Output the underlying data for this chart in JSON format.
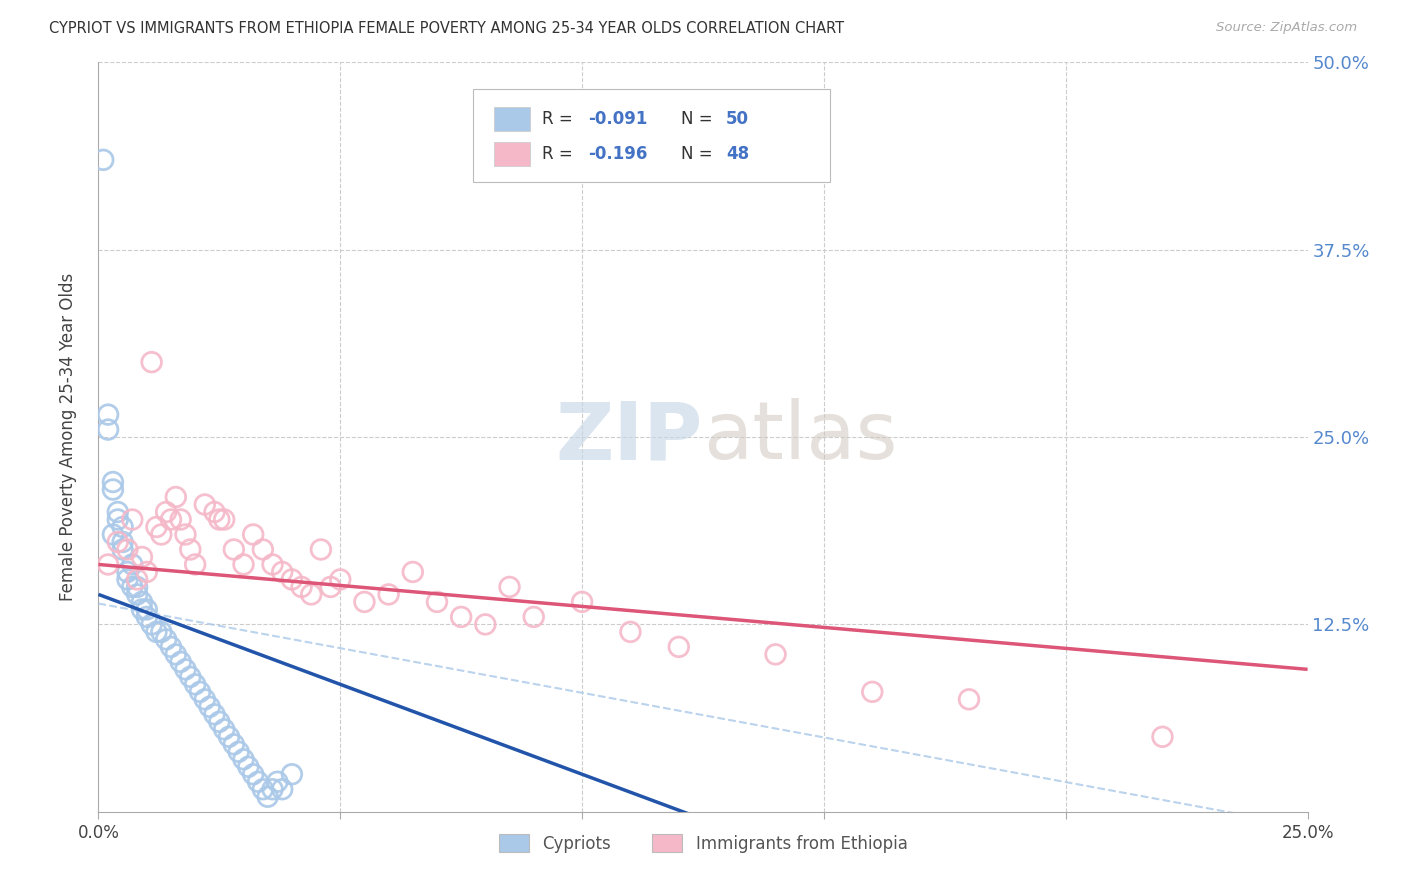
{
  "title": "CYPRIOT VS IMMIGRANTS FROM ETHIOPIA FEMALE POVERTY AMONG 25-34 YEAR OLDS CORRELATION CHART",
  "source": "Source: ZipAtlas.com",
  "ylabel": "Female Poverty Among 25-34 Year Olds",
  "xlim": [
    0.0,
    0.25
  ],
  "ylim": [
    0.0,
    0.5
  ],
  "background_color": "#ffffff",
  "cypriot_marker_color": "#aac8e8",
  "ethiopia_marker_color": "#f5b8c8",
  "cypriot_line_color": "#2255aa",
  "ethiopia_line_color": "#dd5577",
  "dashed_line_color": "#aac8e8",
  "right_axis_color": "#5588cc",
  "legend_r1": "-0.091",
  "legend_n1": "50",
  "legend_r2": "-0.196",
  "legend_n2": "48",
  "legend_label1": "Cypriots",
  "legend_label2": "Immigrants from Ethiopia",
  "watermark_zip": "ZIP",
  "watermark_atlas": "atlas",
  "cypriot_R": -0.091,
  "ethiopia_R": -0.196,
  "cypriot_x": [
    0.001,
    0.002,
    0.002,
    0.003,
    0.003,
    0.003,
    0.004,
    0.004,
    0.005,
    0.005,
    0.005,
    0.006,
    0.006,
    0.007,
    0.007,
    0.008,
    0.008,
    0.009,
    0.009,
    0.01,
    0.01,
    0.011,
    0.012,
    0.013,
    0.014,
    0.015,
    0.016,
    0.017,
    0.018,
    0.019,
    0.02,
    0.021,
    0.022,
    0.023,
    0.024,
    0.025,
    0.026,
    0.027,
    0.028,
    0.029,
    0.03,
    0.031,
    0.032,
    0.033,
    0.034,
    0.035,
    0.036,
    0.037,
    0.038,
    0.04
  ],
  "cypriot_y": [
    0.435,
    0.265,
    0.255,
    0.185,
    0.215,
    0.22,
    0.195,
    0.2,
    0.18,
    0.175,
    0.19,
    0.16,
    0.155,
    0.15,
    0.165,
    0.145,
    0.15,
    0.135,
    0.14,
    0.13,
    0.135,
    0.125,
    0.12,
    0.12,
    0.115,
    0.11,
    0.105,
    0.1,
    0.095,
    0.09,
    0.085,
    0.08,
    0.075,
    0.07,
    0.065,
    0.06,
    0.055,
    0.05,
    0.045,
    0.04,
    0.035,
    0.03,
    0.025,
    0.02,
    0.015,
    0.01,
    0.015,
    0.02,
    0.015,
    0.025
  ],
  "ethiopia_x": [
    0.002,
    0.004,
    0.006,
    0.007,
    0.008,
    0.009,
    0.01,
    0.011,
    0.012,
    0.013,
    0.014,
    0.015,
    0.016,
    0.017,
    0.018,
    0.019,
    0.02,
    0.022,
    0.024,
    0.025,
    0.026,
    0.028,
    0.03,
    0.032,
    0.034,
    0.036,
    0.038,
    0.04,
    0.042,
    0.044,
    0.046,
    0.048,
    0.05,
    0.055,
    0.06,
    0.065,
    0.07,
    0.075,
    0.08,
    0.085,
    0.09,
    0.1,
    0.11,
    0.12,
    0.14,
    0.16,
    0.18,
    0.22
  ],
  "ethiopia_y": [
    0.165,
    0.18,
    0.175,
    0.195,
    0.155,
    0.17,
    0.16,
    0.3,
    0.19,
    0.185,
    0.2,
    0.195,
    0.21,
    0.195,
    0.185,
    0.175,
    0.165,
    0.205,
    0.2,
    0.195,
    0.195,
    0.175,
    0.165,
    0.185,
    0.175,
    0.165,
    0.16,
    0.155,
    0.15,
    0.145,
    0.175,
    0.15,
    0.155,
    0.14,
    0.145,
    0.16,
    0.14,
    0.13,
    0.125,
    0.15,
    0.13,
    0.14,
    0.12,
    0.11,
    0.105,
    0.08,
    0.075,
    0.05
  ],
  "cypriot_line_x0": 0.0,
  "cypriot_line_y0": 0.145,
  "cypriot_line_x1": 0.05,
  "cypriot_line_y1": 0.085,
  "ethiopia_line_x0": 0.0,
  "ethiopia_line_y0": 0.165,
  "ethiopia_line_x1": 0.25,
  "ethiopia_line_y1": 0.095,
  "dashed_line_x0": 0.015,
  "dashed_line_y0": 0.13,
  "dashed_line_x1": 0.25,
  "dashed_line_y1": -0.01
}
